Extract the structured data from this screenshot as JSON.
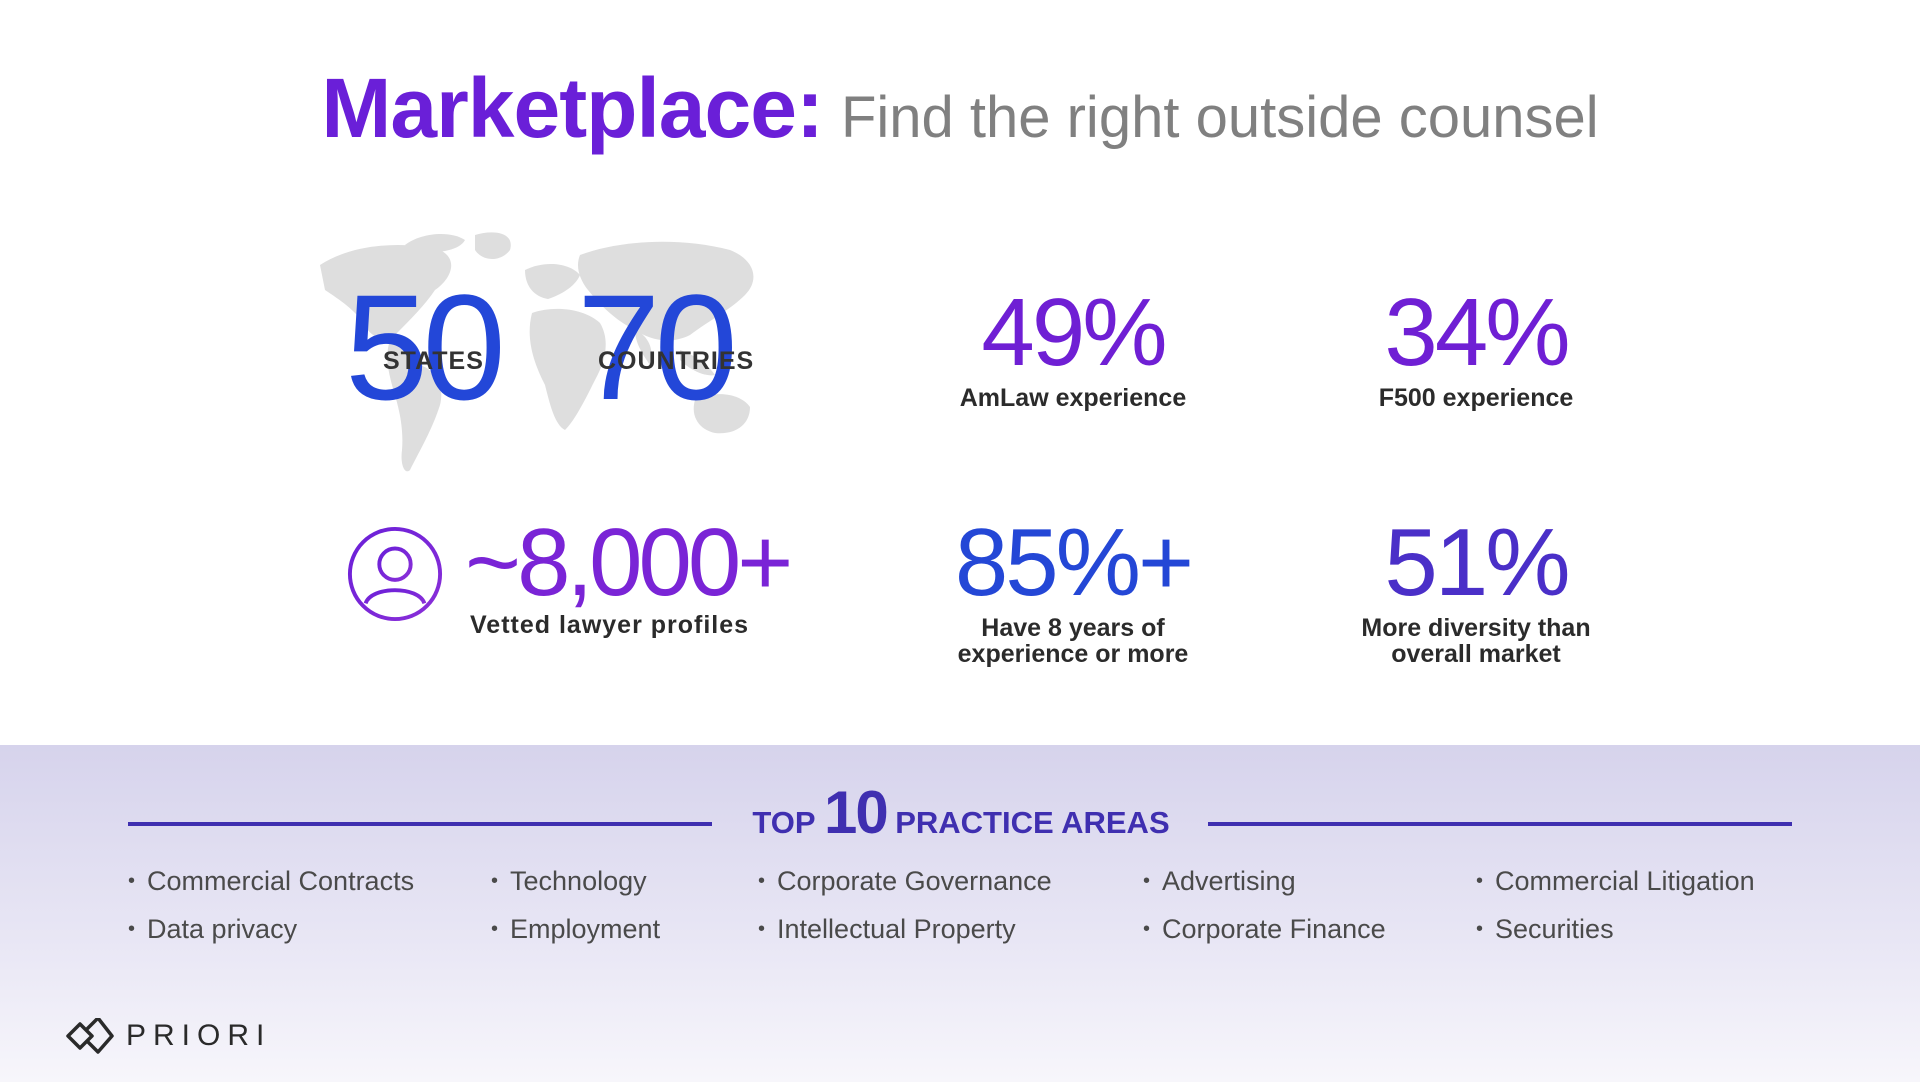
{
  "title": {
    "main": "Marketplace:",
    "sub": "Find the right outside counsel"
  },
  "coverage": {
    "states": {
      "value": "50",
      "label": "STATES"
    },
    "countries": {
      "value": "70",
      "label": "COUNTRIES"
    }
  },
  "stats": {
    "amlaw": {
      "value": "49%",
      "label": "AmLaw experience"
    },
    "f500": {
      "value": "34%",
      "label": "F500 experience"
    },
    "profiles": {
      "value": "~8,000+",
      "label": "Vetted lawyer profiles"
    },
    "experience": {
      "value": "85%+",
      "label_line1": "Have 8 years of",
      "label_line2": "experience or more"
    },
    "diversity": {
      "value": "51%",
      "label_line1": "More diversity than",
      "label_line2": "overall market"
    }
  },
  "practice_areas": {
    "heading_pre": "TOP",
    "heading_num": "10",
    "heading_post": "PRACTICE AREAS",
    "bullet": "•",
    "items": [
      "Commercial Contracts",
      "Data privacy",
      "Technology",
      "Employment",
      "Corporate Governance",
      "Intellectual Property",
      "Advertising",
      "Corporate Finance",
      "Commercial Litigation",
      "Securities"
    ]
  },
  "brand": {
    "logo_text": "PRIORI"
  },
  "colors": {
    "purple": "#6f1fd4",
    "blue": "#2447d6",
    "indigo": "#3f2fb0",
    "gray_text": "#808080"
  }
}
